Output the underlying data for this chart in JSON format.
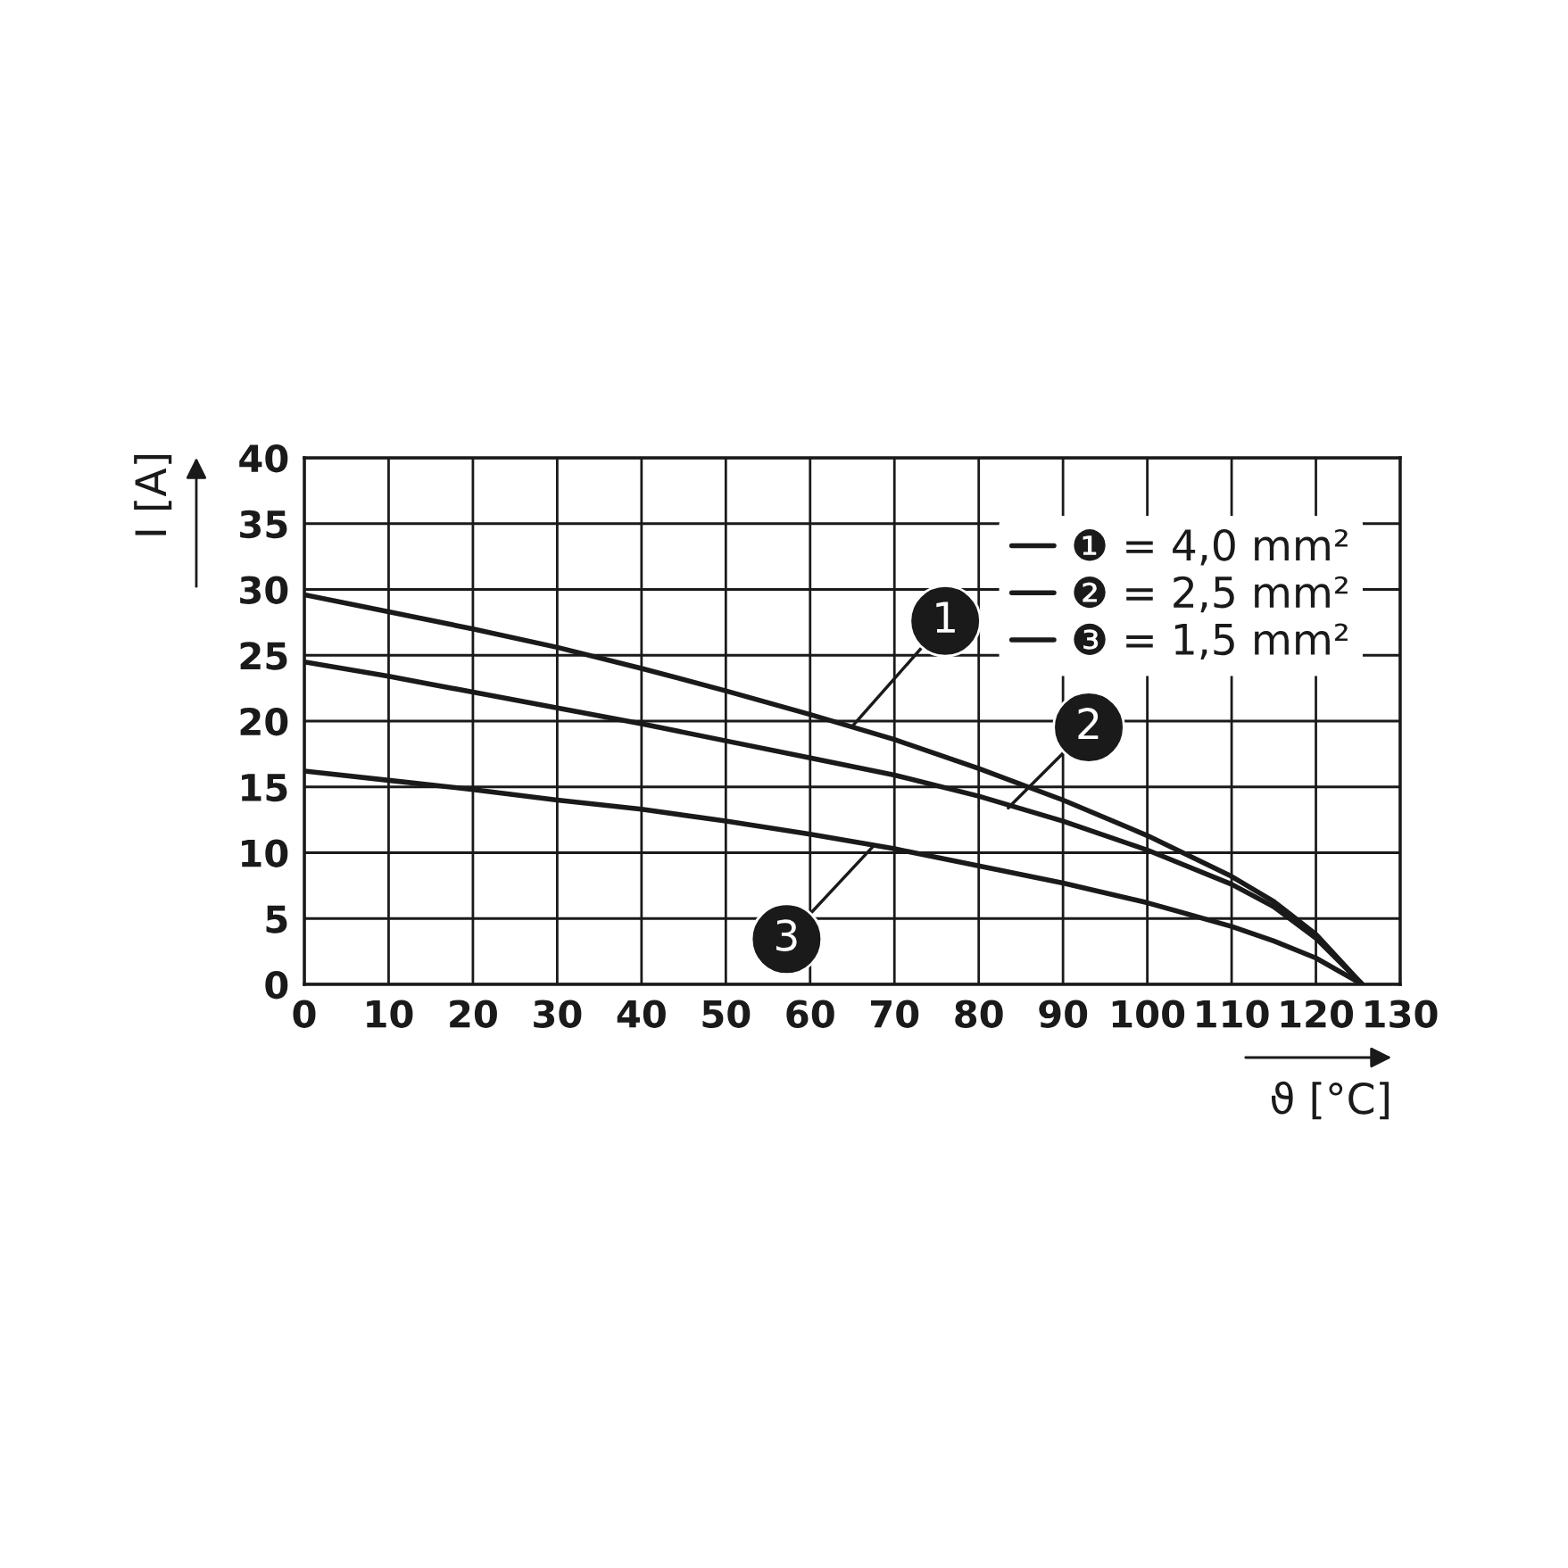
{
  "chart_data": {
    "type": "line",
    "xlabel": "ϑ [°C]",
    "ylabel": "I [A]",
    "x": [
      0,
      10,
      20,
      30,
      40,
      50,
      60,
      70,
      80,
      90,
      100,
      110,
      115,
      120,
      125.5
    ],
    "series": [
      {
        "name": "❶ = 4,0 mm²",
        "color": "#1a1a1a",
        "values": [
          29.6,
          28.3,
          27.0,
          25.6,
          24.0,
          22.3,
          20.5,
          18.6,
          16.4,
          14.0,
          11.3,
          8.2,
          6.3,
          3.8,
          0
        ]
      },
      {
        "name": "❷ = 2,5 mm²",
        "color": "#1a1a1a",
        "values": [
          24.5,
          23.4,
          22.2,
          21.0,
          19.8,
          18.5,
          17.2,
          15.9,
          14.3,
          12.4,
          10.2,
          7.6,
          5.9,
          3.5,
          0
        ]
      },
      {
        "name": "❸ = 1,5 mm²",
        "color": "#1a1a1a",
        "values": [
          16.2,
          15.5,
          14.8,
          14.0,
          13.3,
          12.4,
          11.4,
          10.3,
          9.0,
          7.7,
          6.2,
          4.4,
          3.3,
          2.0,
          0
        ]
      }
    ],
    "annotations": [
      {
        "text": "1",
        "x": 65,
        "y": 19.6
      },
      {
        "text": "2",
        "x": 83.5,
        "y": 13.4
      },
      {
        "text": "3",
        "x": 67.5,
        "y": 10.5
      }
    ],
    "xlim": [
      0,
      130
    ],
    "xticks": [
      0,
      10,
      20,
      30,
      40,
      50,
      60,
      70,
      80,
      90,
      100,
      110,
      120,
      130
    ],
    "ylim": [
      0,
      40
    ],
    "yticks": [
      0,
      5,
      10,
      15,
      20,
      25,
      30,
      35,
      40
    ],
    "grid": true,
    "legend": "top right",
    "marker": "none",
    "line_style": "solid"
  }
}
